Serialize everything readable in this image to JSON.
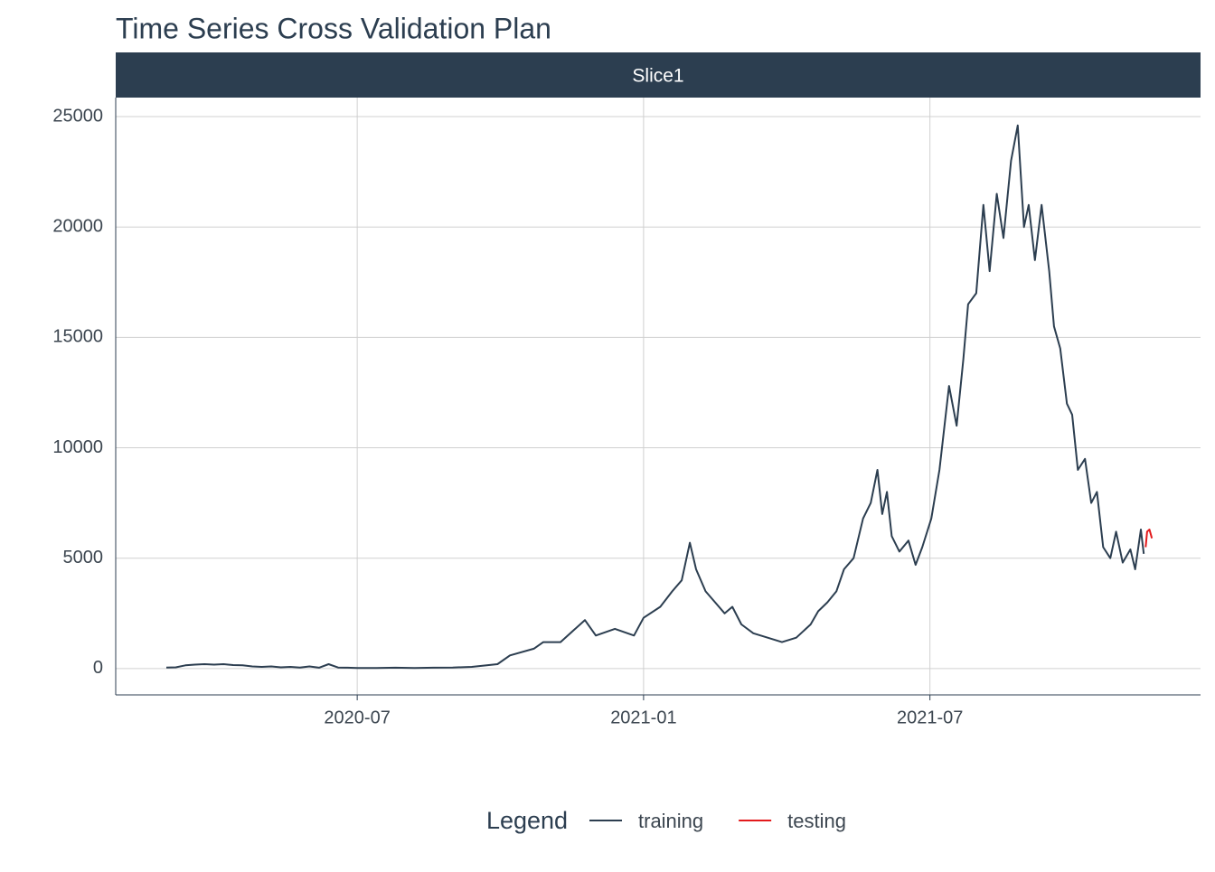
{
  "chart_data": {
    "type": "line",
    "title": "Time Series Cross Validation Plan",
    "facet": "Slice1",
    "legend_title": "Legend",
    "legend": "bottom",
    "grid": true,
    "xlim": [
      0.94,
      23.67
    ],
    "xticks": [
      {
        "value": 6,
        "label": "2020-07"
      },
      {
        "value": 12,
        "label": "2021-01"
      },
      {
        "value": 18,
        "label": "2021-07"
      }
    ],
    "ylim": [
      -1190,
      25860
    ],
    "yticks": [
      0,
      5000,
      10000,
      15000,
      20000,
      25000
    ],
    "series": [
      {
        "name": "training",
        "color": "#2c3e50",
        "x": [
          2.0,
          2.2,
          2.4,
          2.6,
          2.8,
          3.0,
          3.2,
          3.4,
          3.6,
          3.8,
          4.0,
          4.2,
          4.4,
          4.6,
          4.8,
          5.0,
          5.2,
          5.4,
          5.6,
          5.8,
          6.0,
          6.4,
          6.8,
          7.2,
          7.6,
          8.0,
          8.4,
          8.94,
          9.2,
          9.7,
          9.9,
          10.26,
          10.77,
          11.0,
          11.4,
          11.8,
          12.0,
          12.35,
          12.6,
          12.8,
          12.97,
          13.1,
          13.3,
          13.5,
          13.7,
          13.86,
          14.05,
          14.3,
          14.6,
          14.9,
          15.2,
          15.5,
          15.66,
          15.85,
          16.04,
          16.2,
          16.4,
          16.6,
          16.76,
          16.9,
          17.0,
          17.1,
          17.2,
          17.36,
          17.55,
          17.7,
          17.84,
          18.03,
          18.2,
          18.4,
          18.56,
          18.7,
          18.8,
          18.97,
          19.12,
          19.25,
          19.4,
          19.54,
          19.7,
          19.84,
          19.97,
          20.07,
          20.2,
          20.34,
          20.5,
          20.6,
          20.73,
          20.87,
          20.98,
          21.1,
          21.25,
          21.38,
          21.5,
          21.63,
          21.78,
          21.9,
          22.04,
          22.2,
          22.3,
          22.42,
          22.48
        ],
        "values": [
          50,
          60,
          150,
          180,
          200,
          180,
          200,
          160,
          150,
          100,
          80,
          100,
          60,
          80,
          50,
          100,
          40,
          200,
          50,
          40,
          30,
          30,
          40,
          30,
          40,
          50,
          80,
          200,
          600,
          900,
          1200,
          1200,
          2200,
          1500,
          1800,
          1500,
          2300,
          2800,
          3500,
          4000,
          5700,
          4500,
          3500,
          3000,
          2500,
          2800,
          2000,
          1600,
          1400,
          1200,
          1400,
          2000,
          2600,
          3000,
          3500,
          4500,
          5000,
          6800,
          7500,
          9000,
          7000,
          8000,
          6000,
          5300,
          5800,
          4700,
          5500,
          6800,
          9000,
          12800,
          11000,
          14000,
          16500,
          17000,
          21000,
          18000,
          21500,
          19500,
          23000,
          24600,
          20000,
          21000,
          18500,
          21000,
          18000,
          15500,
          14500,
          12000,
          11500,
          9000,
          9500,
          7500,
          8000,
          5500,
          5000,
          6200,
          4800,
          5400,
          4500,
          6300,
          5200
        ]
      },
      {
        "name": "testing",
        "color": "#e31a1c",
        "x": [
          22.52,
          22.55,
          22.6,
          22.65
        ],
        "values": [
          5500,
          6200,
          6300,
          5900
        ]
      }
    ]
  }
}
